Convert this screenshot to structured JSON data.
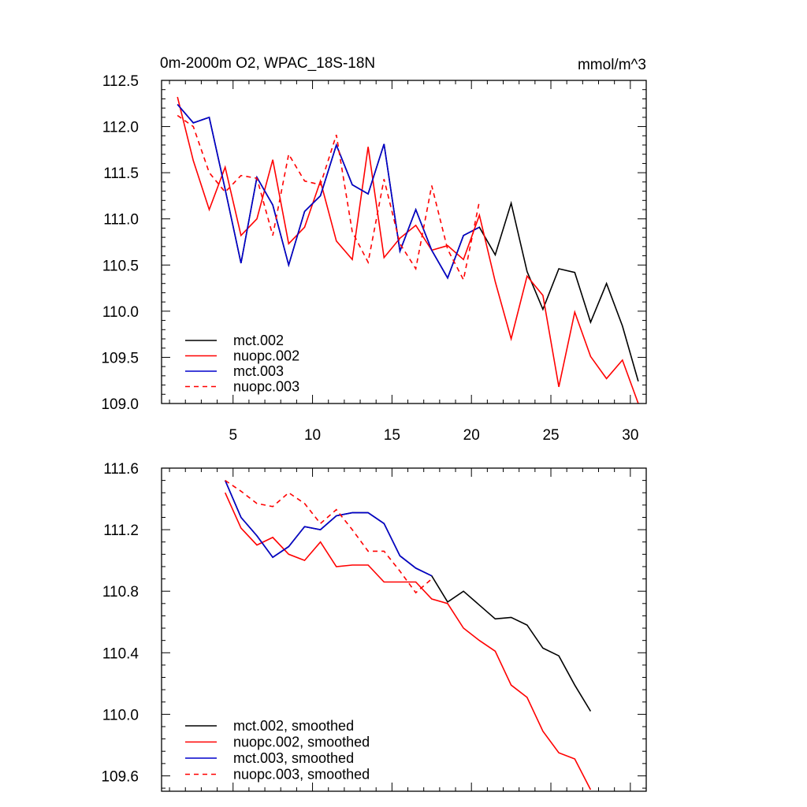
{
  "chart_data": [
    {
      "type": "line",
      "title": "0m-2000m O2, WPAC_18S-18N",
      "units_label": "mmol/m^3",
      "xlim": [
        0.5,
        31
      ],
      "ylim": [
        109.0,
        112.5
      ],
      "x_ticks": [
        5,
        10,
        15,
        20,
        25,
        30
      ],
      "x_tick_labels": [
        "5",
        "10",
        "15",
        "20",
        "25",
        "30"
      ],
      "y_ticks": [
        109.0,
        109.5,
        110.0,
        110.5,
        111.0,
        111.5,
        112.0,
        112.5
      ],
      "y_tick_labels": [
        "109.0",
        "109.5",
        "110.0",
        "110.5",
        "111.0",
        "111.5",
        "112.0",
        "112.5"
      ],
      "legend_position": "bottom-left",
      "series": [
        {
          "name": "mct.002",
          "color": "#000000",
          "dash": "solid",
          "x": [
            1.5,
            2.5,
            3.5,
            4.5,
            5.5,
            6.5,
            7.5,
            8.5,
            9.5,
            10.5,
            11.5,
            12.5,
            13.5,
            14.5,
            15.5,
            16.5,
            17.5,
            18.5,
            19.5,
            20.5,
            21.5,
            22.5,
            23.5,
            24.5,
            25.5,
            26.5,
            27.5,
            28.5,
            29.5,
            30.5
          ],
          "values": [
            112.24,
            112.04,
            112.1,
            111.32,
            110.52,
            111.45,
            111.15,
            110.5,
            111.08,
            111.25,
            111.8,
            111.37,
            111.27,
            111.81,
            110.65,
            111.1,
            110.66,
            110.36,
            110.82,
            110.91,
            110.61,
            111.17,
            110.43,
            110.02,
            110.46,
            110.42,
            109.88,
            110.3,
            109.84,
            109.24
          ]
        },
        {
          "name": "nuopc.002",
          "color": "#ff0000",
          "dash": "solid",
          "x": [
            1.5,
            2.5,
            3.5,
            4.5,
            5.5,
            6.5,
            7.5,
            8.5,
            9.5,
            10.5,
            11.5,
            12.5,
            13.5,
            14.5,
            15.5,
            16.5,
            17.5,
            18.5,
            19.5,
            20.5,
            21.5,
            22.5,
            23.5,
            24.5,
            25.5,
            26.5,
            27.5,
            28.5,
            29.5,
            30.5
          ],
          "values": [
            112.32,
            111.63,
            111.1,
            111.56,
            110.82,
            111.0,
            111.64,
            110.73,
            110.91,
            111.41,
            110.76,
            110.56,
            111.78,
            110.58,
            110.79,
            110.93,
            110.66,
            110.71,
            110.56,
            111.04,
            110.32,
            109.7,
            110.38,
            110.17,
            109.18,
            109.99,
            109.51,
            109.27,
            109.47,
            109.0
          ]
        },
        {
          "name": "mct.003",
          "color": "#0000cc",
          "dash": "solid",
          "x": [
            1.5,
            2.5,
            3.5,
            4.5,
            5.5,
            6.5,
            7.5,
            8.5,
            9.5,
            10.5,
            11.5,
            12.5,
            13.5,
            14.5,
            15.5,
            16.5,
            17.5,
            18.5,
            19.5,
            20.5
          ],
          "values": [
            112.24,
            112.04,
            112.1,
            111.32,
            110.52,
            111.45,
            111.15,
            110.5,
            111.08,
            111.25,
            111.8,
            111.37,
            111.27,
            111.81,
            110.65,
            111.1,
            110.66,
            110.36,
            110.82,
            110.91
          ]
        },
        {
          "name": "nuopc.003",
          "color": "#ff0000",
          "dash": "dashed",
          "x": [
            1.5,
            2.5,
            3.5,
            4.5,
            5.5,
            6.5,
            7.5,
            8.5,
            9.5,
            10.5,
            11.5,
            12.5,
            13.5,
            14.5,
            15.5,
            16.5,
            17.5,
            18.5,
            19.5,
            20.5
          ],
          "values": [
            112.12,
            112.0,
            111.5,
            111.29,
            111.47,
            111.44,
            110.82,
            111.7,
            111.41,
            111.37,
            111.91,
            110.86,
            110.53,
            111.43,
            110.73,
            110.46,
            111.36,
            110.67,
            110.34,
            111.19
          ]
        }
      ]
    },
    {
      "type": "line",
      "title": "",
      "xlim": [
        0.5,
        31
      ],
      "ylim": [
        109.5,
        111.6
      ],
      "x_ticks": [
        5,
        10,
        15,
        20,
        25,
        30
      ],
      "y_ticks": [
        109.6,
        110.0,
        110.4,
        110.8,
        111.2,
        111.6
      ],
      "y_tick_labels": [
        "109.6",
        "110.0",
        "110.4",
        "110.8",
        "111.2",
        "111.6"
      ],
      "legend_position": "bottom-left",
      "series": [
        {
          "name": "mct.002, smoothed",
          "color": "#000000",
          "dash": "solid",
          "x": [
            4.5,
            5.5,
            6.5,
            7.5,
            8.5,
            9.5,
            10.5,
            11.5,
            12.5,
            13.5,
            14.5,
            15.5,
            16.5,
            17.5,
            18.5,
            19.5,
            20.5,
            21.5,
            22.5,
            23.5,
            24.5,
            25.5,
            26.5,
            27.5
          ],
          "values": [
            111.52,
            111.28,
            111.16,
            111.02,
            111.09,
            111.22,
            111.2,
            111.29,
            111.31,
            111.31,
            111.24,
            111.03,
            110.95,
            110.9,
            110.73,
            110.8,
            110.71,
            110.62,
            110.63,
            110.58,
            110.43,
            110.38,
            110.19,
            110.02
          ]
        },
        {
          "name": "nuopc.002, smoothed",
          "color": "#ff0000",
          "dash": "solid",
          "x": [
            4.5,
            5.5,
            6.5,
            7.5,
            8.5,
            9.5,
            10.5,
            11.5,
            12.5,
            13.5,
            14.5,
            15.5,
            16.5,
            17.5,
            18.5,
            19.5,
            20.5,
            21.5,
            22.5,
            23.5,
            24.5,
            25.5,
            26.5,
            27.5
          ],
          "values": [
            111.44,
            111.21,
            111.1,
            111.15,
            111.04,
            111.0,
            111.12,
            110.96,
            110.97,
            110.97,
            110.86,
            110.86,
            110.86,
            110.75,
            110.72,
            110.56,
            110.48,
            110.41,
            110.19,
            110.11,
            109.89,
            109.75,
            109.71,
            109.51
          ]
        },
        {
          "name": "mct.003, smoothed",
          "color": "#0000cc",
          "dash": "solid",
          "x": [
            4.5,
            5.5,
            6.5,
            7.5,
            8.5,
            9.5,
            10.5,
            11.5,
            12.5,
            13.5,
            14.5,
            15.5,
            16.5,
            17.5
          ],
          "values": [
            111.52,
            111.28,
            111.16,
            111.02,
            111.09,
            111.22,
            111.2,
            111.29,
            111.31,
            111.31,
            111.24,
            111.03,
            110.95,
            110.9
          ]
        },
        {
          "name": "nuopc.003, smoothed",
          "color": "#ff0000",
          "dash": "dashed",
          "x": [
            4.5,
            5.5,
            6.5,
            7.5,
            8.5,
            9.5,
            10.5,
            11.5,
            12.5,
            13.5,
            14.5,
            15.5,
            16.5,
            17.5
          ],
          "values": [
            111.52,
            111.45,
            111.37,
            111.35,
            111.44,
            111.37,
            111.24,
            111.33,
            111.2,
            111.06,
            111.06,
            110.93,
            110.79,
            110.88
          ]
        }
      ]
    }
  ]
}
